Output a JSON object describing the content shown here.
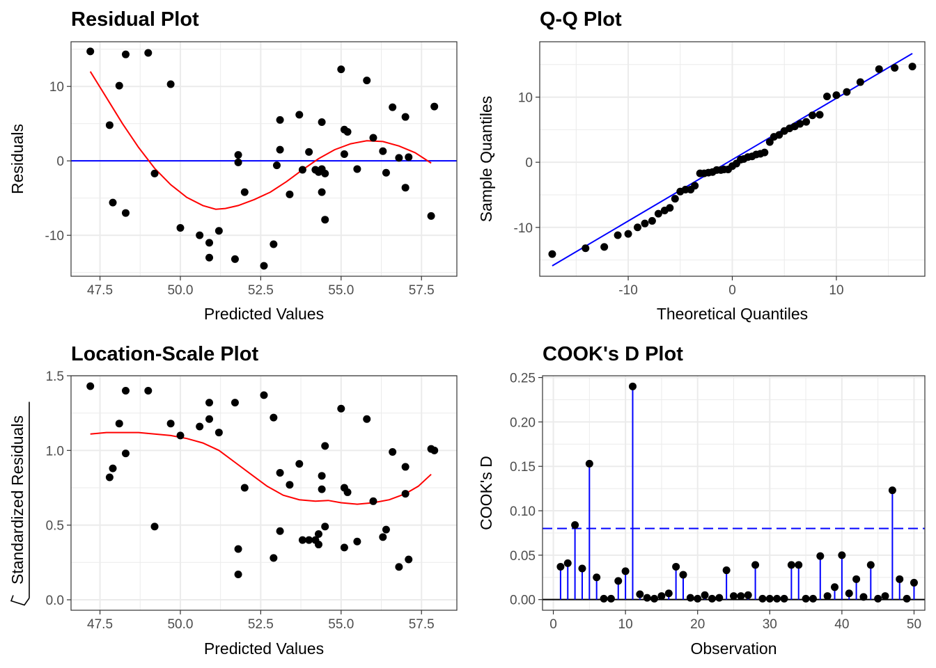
{
  "colors": {
    "point": "#000000",
    "smooth": "#ff0000",
    "ref": "#0000ff",
    "grid": "#ebebeb",
    "frame": "#333333"
  },
  "chart_data": [
    {
      "type": "scatter",
      "title": "Residual Plot",
      "xlabel": "Predicted Values",
      "ylabel": "Residuals",
      "xlim": [
        46.6,
        58.6
      ],
      "ylim": [
        -15.5,
        16.0
      ],
      "xticks": [
        47.5,
        50.0,
        52.5,
        55.0,
        57.5
      ],
      "xtick_labels": [
        "47.5",
        "50.0",
        "52.5",
        "55.0",
        "57.5"
      ],
      "yticks": [
        -10,
        0,
        10
      ],
      "ytick_labels": [
        "-10",
        "0",
        "10"
      ],
      "hline": 0,
      "points": [
        [
          47.2,
          14.7
        ],
        [
          47.8,
          4.8
        ],
        [
          47.9,
          -5.6
        ],
        [
          48.1,
          10.1
        ],
        [
          48.3,
          14.3
        ],
        [
          48.3,
          -7.0
        ],
        [
          49.0,
          14.5
        ],
        [
          49.2,
          -1.7
        ],
        [
          49.7,
          10.3
        ],
        [
          50.0,
          -9.0
        ],
        [
          50.6,
          -10.0
        ],
        [
          50.9,
          -11.0
        ],
        [
          50.9,
          -13.0
        ],
        [
          51.2,
          -9.4
        ],
        [
          51.7,
          -13.2
        ],
        [
          51.8,
          0.8
        ],
        [
          51.8,
          -0.2
        ],
        [
          52.0,
          -4.2
        ],
        [
          52.6,
          -14.1
        ],
        [
          52.9,
          -11.2
        ],
        [
          53.0,
          -0.6
        ],
        [
          53.1,
          5.5
        ],
        [
          53.1,
          1.5
        ],
        [
          53.4,
          -4.5
        ],
        [
          53.7,
          6.2
        ],
        [
          53.8,
          -1.2
        ],
        [
          54.0,
          1.2
        ],
        [
          54.2,
          -1.2
        ],
        [
          54.3,
          -1.5
        ],
        [
          54.4,
          -1.1
        ],
        [
          54.4,
          -4.2
        ],
        [
          54.4,
          5.2
        ],
        [
          54.5,
          -1.7
        ],
        [
          54.5,
          -7.9
        ],
        [
          55.0,
          12.3
        ],
        [
          55.1,
          4.2
        ],
        [
          55.1,
          0.9
        ],
        [
          55.2,
          3.9
        ],
        [
          55.5,
          -1.1
        ],
        [
          55.8,
          10.8
        ],
        [
          56.0,
          3.1
        ],
        [
          56.3,
          1.3
        ],
        [
          56.4,
          -1.6
        ],
        [
          56.6,
          7.2
        ],
        [
          56.8,
          0.4
        ],
        [
          57.0,
          -3.6
        ],
        [
          57.0,
          5.9
        ],
        [
          57.1,
          0.5
        ],
        [
          57.8,
          -7.4
        ],
        [
          57.9,
          7.3
        ]
      ],
      "smooth": [
        [
          47.2,
          12.0
        ],
        [
          47.7,
          8.5
        ],
        [
          48.2,
          5.0
        ],
        [
          48.7,
          1.8
        ],
        [
          49.2,
          -1.0
        ],
        [
          49.7,
          -3.2
        ],
        [
          50.2,
          -4.9
        ],
        [
          50.7,
          -6.0
        ],
        [
          51.1,
          -6.5
        ],
        [
          51.4,
          -6.4
        ],
        [
          51.8,
          -6.0
        ],
        [
          52.3,
          -5.2
        ],
        [
          52.8,
          -4.2
        ],
        [
          53.3,
          -2.8
        ],
        [
          53.8,
          -1.2
        ],
        [
          54.3,
          0.3
        ],
        [
          54.8,
          1.5
        ],
        [
          55.3,
          2.3
        ],
        [
          55.8,
          2.7
        ],
        [
          56.3,
          2.6
        ],
        [
          56.8,
          2.0
        ],
        [
          57.3,
          1.1
        ],
        [
          57.8,
          -0.3
        ]
      ]
    },
    {
      "type": "scatter",
      "title": "Q-Q Plot",
      "xlabel": "Theoretical Quantiles",
      "ylabel": "Sample Quantiles",
      "xlim": [
        -18.5,
        18.5
      ],
      "ylim": [
        -17.5,
        18.5
      ],
      "xticks": [
        -10,
        0,
        10
      ],
      "xtick_labels": [
        "-10",
        "0",
        "10"
      ],
      "yticks": [
        -10,
        0,
        10
      ],
      "ytick_labels": [
        "-10",
        "0",
        "10"
      ],
      "line": [
        [
          -17.3,
          -15.9
        ],
        [
          17.3,
          16.7
        ]
      ],
      "points": [
        [
          -17.3,
          -14.1
        ],
        [
          -14.1,
          -13.2
        ],
        [
          -12.3,
          -13.0
        ],
        [
          -11.0,
          -11.2
        ],
        [
          -10.0,
          -11.0
        ],
        [
          -9.1,
          -10.0
        ],
        [
          -8.4,
          -9.4
        ],
        [
          -7.7,
          -9.0
        ],
        [
          -7.1,
          -7.9
        ],
        [
          -6.5,
          -7.4
        ],
        [
          -6.0,
          -7.0
        ],
        [
          -5.5,
          -5.6
        ],
        [
          -5.0,
          -4.5
        ],
        [
          -4.5,
          -4.2
        ],
        [
          -4.0,
          -4.2
        ],
        [
          -3.6,
          -3.6
        ],
        [
          -3.1,
          -1.7
        ],
        [
          -2.7,
          -1.7
        ],
        [
          -2.3,
          -1.6
        ],
        [
          -1.9,
          -1.5
        ],
        [
          -1.5,
          -1.2
        ],
        [
          -1.1,
          -1.2
        ],
        [
          -0.8,
          -1.1
        ],
        [
          -0.4,
          -1.1
        ],
        [
          0.0,
          -0.6
        ],
        [
          0.4,
          -0.2
        ],
        [
          0.8,
          0.4
        ],
        [
          1.1,
          0.5
        ],
        [
          1.5,
          0.8
        ],
        [
          1.9,
          0.9
        ],
        [
          2.3,
          1.2
        ],
        [
          2.7,
          1.3
        ],
        [
          3.1,
          1.5
        ],
        [
          3.6,
          3.1
        ],
        [
          4.0,
          3.9
        ],
        [
          4.5,
          4.2
        ],
        [
          5.0,
          4.8
        ],
        [
          5.5,
          5.2
        ],
        [
          6.0,
          5.5
        ],
        [
          6.5,
          5.9
        ],
        [
          7.1,
          6.2
        ],
        [
          7.7,
          7.2
        ],
        [
          8.4,
          7.3
        ],
        [
          9.1,
          10.1
        ],
        [
          10.0,
          10.3
        ],
        [
          11.0,
          10.8
        ],
        [
          12.3,
          12.3
        ],
        [
          14.1,
          14.3
        ],
        [
          15.6,
          14.5
        ],
        [
          17.3,
          14.7
        ]
      ]
    },
    {
      "type": "scatter",
      "title": "Location-Scale Plot",
      "xlabel": "Predicted Values",
      "ylabel": "Standardized Residuals",
      "xlim": [
        46.6,
        58.6
      ],
      "ylim": [
        -0.07,
        1.5
      ],
      "xticks": [
        47.5,
        50.0,
        52.5,
        55.0,
        57.5
      ],
      "xtick_labels": [
        "47.5",
        "50.0",
        "52.5",
        "55.0",
        "57.5"
      ],
      "yticks": [
        0.0,
        0.5,
        1.0,
        1.5
      ],
      "ytick_labels": [
        "0.0",
        "0.5",
        "1.0",
        "1.5"
      ],
      "points": [
        [
          47.2,
          1.43
        ],
        [
          47.8,
          0.82
        ],
        [
          47.9,
          0.88
        ],
        [
          48.1,
          1.18
        ],
        [
          48.3,
          1.4
        ],
        [
          48.3,
          0.98
        ],
        [
          49.0,
          1.4
        ],
        [
          49.2,
          0.49
        ],
        [
          49.7,
          1.18
        ],
        [
          50.0,
          1.1
        ],
        [
          50.6,
          1.16
        ],
        [
          50.9,
          1.21
        ],
        [
          50.9,
          1.32
        ],
        [
          51.2,
          1.12
        ],
        [
          51.7,
          1.32
        ],
        [
          51.8,
          0.34
        ],
        [
          51.8,
          0.17
        ],
        [
          52.0,
          0.75
        ],
        [
          52.6,
          1.37
        ],
        [
          52.9,
          1.22
        ],
        [
          52.9,
          0.28
        ],
        [
          53.1,
          0.85
        ],
        [
          53.1,
          0.46
        ],
        [
          53.4,
          0.77
        ],
        [
          53.7,
          0.91
        ],
        [
          53.8,
          0.4
        ],
        [
          54.0,
          0.4
        ],
        [
          54.2,
          0.4
        ],
        [
          54.3,
          0.44
        ],
        [
          54.3,
          0.37
        ],
        [
          54.4,
          0.74
        ],
        [
          54.4,
          0.83
        ],
        [
          54.5,
          1.03
        ],
        [
          54.5,
          0.49
        ],
        [
          55.0,
          1.28
        ],
        [
          55.1,
          0.75
        ],
        [
          55.1,
          0.35
        ],
        [
          55.2,
          0.72
        ],
        [
          55.5,
          0.39
        ],
        [
          55.8,
          1.21
        ],
        [
          56.0,
          0.66
        ],
        [
          56.3,
          0.42
        ],
        [
          56.4,
          0.47
        ],
        [
          56.6,
          0.99
        ],
        [
          56.8,
          0.22
        ],
        [
          57.0,
          0.71
        ],
        [
          57.0,
          0.89
        ],
        [
          57.1,
          0.27
        ],
        [
          57.8,
          1.01
        ],
        [
          57.9,
          1.0
        ]
      ],
      "smooth": [
        [
          47.2,
          1.11
        ],
        [
          47.7,
          1.12
        ],
        [
          48.2,
          1.12
        ],
        [
          48.7,
          1.12
        ],
        [
          49.2,
          1.11
        ],
        [
          49.7,
          1.1
        ],
        [
          50.2,
          1.08
        ],
        [
          50.7,
          1.05
        ],
        [
          51.2,
          1.0
        ],
        [
          51.7,
          0.92
        ],
        [
          52.2,
          0.84
        ],
        [
          52.7,
          0.76
        ],
        [
          53.2,
          0.7
        ],
        [
          53.7,
          0.67
        ],
        [
          54.2,
          0.66
        ],
        [
          54.6,
          0.665
        ],
        [
          55.0,
          0.65
        ],
        [
          55.5,
          0.64
        ],
        [
          56.0,
          0.65
        ],
        [
          56.5,
          0.67
        ],
        [
          57.0,
          0.71
        ],
        [
          57.4,
          0.76
        ],
        [
          57.8,
          0.84
        ]
      ]
    },
    {
      "type": "bar",
      "title": "COOK's D Plot",
      "xlabel": "Observation",
      "ylabel": "COOK's D",
      "xlim": [
        -1.5,
        51.5
      ],
      "ylim": [
        -0.012,
        0.252
      ],
      "xticks": [
        0,
        10,
        20,
        30,
        40,
        50
      ],
      "xtick_labels": [
        "0",
        "10",
        "20",
        "30",
        "40",
        "50"
      ],
      "yticks": [
        0.0,
        0.05,
        0.1,
        0.15,
        0.2,
        0.25
      ],
      "ytick_labels": [
        "0.00",
        "0.05",
        "0.10",
        "0.15",
        "0.20",
        "0.25"
      ],
      "threshold": 0.08,
      "x": [
        1,
        2,
        3,
        4,
        5,
        6,
        7,
        8,
        9,
        10,
        11,
        12,
        13,
        14,
        15,
        16,
        17,
        18,
        19,
        20,
        21,
        22,
        23,
        24,
        25,
        26,
        27,
        28,
        29,
        30,
        31,
        32,
        33,
        34,
        35,
        36,
        37,
        38,
        39,
        40,
        41,
        42,
        43,
        44,
        45,
        46,
        47,
        48,
        49,
        50
      ],
      "values": [
        0.037,
        0.041,
        0.084,
        0.035,
        0.153,
        0.025,
        0.001,
        0.001,
        0.021,
        0.032,
        0.24,
        0.006,
        0.002,
        0.001,
        0.004,
        0.007,
        0.037,
        0.028,
        0.002,
        0.001,
        0.005,
        0.001,
        0.002,
        0.033,
        0.004,
        0.004,
        0.005,
        0.039,
        0.001,
        0.001,
        0.001,
        0.001,
        0.039,
        0.039,
        0.001,
        0.001,
        0.049,
        0.004,
        0.014,
        0.05,
        0.007,
        0.023,
        0.003,
        0.039,
        0.001,
        0.004,
        0.123,
        0.023,
        0.001,
        0.019
      ]
    }
  ]
}
